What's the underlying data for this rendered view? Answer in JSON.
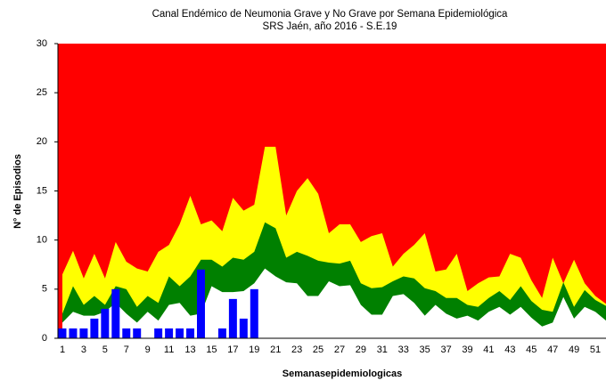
{
  "chart_data": {
    "type": "combo",
    "title": "Canal Endémico de Neumonia Grave y No Grave por Semana Epidemiológica",
    "subtitle": "SRS Jaén, año 2016 - S.E.19",
    "x_label": "Semanasepidemiologicas",
    "y_label": "N° de Episodios",
    "background_color": "#ff0000",
    "categories": [
      "1",
      null,
      "3",
      null,
      "5",
      null,
      "7",
      null,
      "9",
      null,
      "11",
      null,
      "13",
      null,
      "15",
      null,
      "17",
      null,
      "19",
      null,
      "21",
      null,
      "23",
      null,
      "25",
      null,
      "27",
      null,
      "29",
      null,
      "31",
      null,
      "33",
      null,
      "35",
      null,
      "37",
      null,
      "39",
      null,
      "41",
      null,
      "43",
      null,
      "45",
      null,
      "47",
      null,
      "49",
      null,
      "51",
      null
    ],
    "series": [
      {
        "type": "area",
        "color": "#ffff00",
        "values": [
          6.5,
          8.9,
          6.1,
          8.6,
          6.1,
          9.8,
          7.8,
          7.1,
          6.8,
          8.8,
          9.5,
          11.6,
          14.5,
          11.6,
          12.0,
          10.9,
          14.3,
          13.0,
          13.6,
          19.5,
          19.5,
          12.5,
          15.0,
          16.3,
          14.7,
          10.7,
          11.6,
          11.6,
          9.8,
          10.4,
          10.7,
          7.3,
          8.6,
          9.5,
          10.7,
          6.8,
          7.0,
          8.6,
          4.8,
          5.6,
          6.2,
          6.3,
          8.6,
          8.2,
          5.9,
          4.1,
          8.2,
          5.6,
          8.0,
          5.6,
          4.3,
          3.5
        ]
      },
      {
        "type": "area",
        "color": "#008000",
        "values": [
          2.5,
          5.3,
          3.4,
          4.3,
          3.4,
          5.3,
          5.0,
          3.2,
          4.3,
          3.6,
          6.3,
          5.3,
          6.3,
          8.0,
          8.0,
          7.3,
          8.2,
          8.0,
          8.8,
          11.8,
          11.2,
          8.2,
          8.8,
          8.4,
          7.9,
          7.7,
          7.6,
          7.9,
          5.6,
          5.1,
          5.2,
          5.8,
          6.3,
          6.1,
          5.1,
          4.8,
          4.1,
          4.1,
          3.4,
          3.2,
          4.1,
          4.8,
          3.9,
          5.3,
          3.8,
          2.9,
          2.7,
          5.7,
          3.2,
          4.9,
          3.9,
          3.3
        ]
      },
      {
        "type": "area",
        "color": "#ffffff",
        "values": [
          1.6,
          2.7,
          2.3,
          2.3,
          2.7,
          3.6,
          2.5,
          1.6,
          2.7,
          1.8,
          3.4,
          3.6,
          2.3,
          2.5,
          5.3,
          4.7,
          4.7,
          4.8,
          5.6,
          7.1,
          6.3,
          5.7,
          5.6,
          4.3,
          4.3,
          5.8,
          5.3,
          5.4,
          3.4,
          2.4,
          2.4,
          4.3,
          4.5,
          3.6,
          2.3,
          3.4,
          2.5,
          2.0,
          2.3,
          1.8,
          2.7,
          3.2,
          2.4,
          3.2,
          2.1,
          1.2,
          1.6,
          4.2,
          2.0,
          3.2,
          2.7,
          1.8
        ]
      },
      {
        "type": "bar",
        "color": "#0000ff",
        "values": [
          1,
          1,
          1,
          2,
          3,
          5,
          1,
          1,
          0,
          1,
          1,
          1,
          1,
          7,
          0,
          1,
          4,
          2,
          5,
          null,
          null,
          null,
          null,
          null,
          null,
          null,
          null,
          null,
          null,
          null,
          null,
          null,
          null,
          null,
          null,
          null,
          null,
          null,
          null,
          null,
          null,
          null,
          null,
          null,
          null,
          null,
          null,
          null,
          null,
          null,
          null,
          null
        ]
      }
    ],
    "ylim": [
      0,
      30
    ],
    "yticks": [
      0,
      5,
      10,
      15,
      20,
      25,
      30
    ],
    "grid": false
  }
}
